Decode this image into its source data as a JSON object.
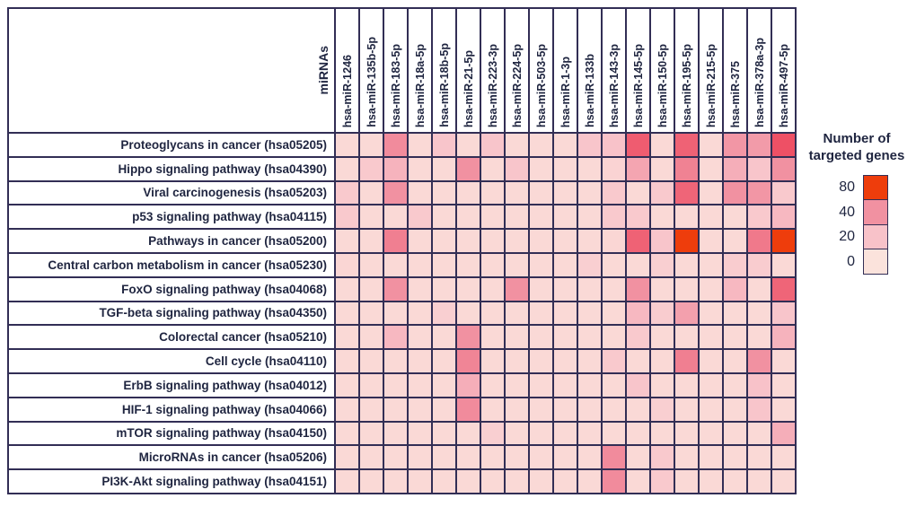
{
  "figure": {
    "corner_label": "miRNAs",
    "legend": {
      "title": "Number of targeted genes",
      "ticks": [
        "80",
        "40",
        "20",
        "0"
      ],
      "tick_colors": [
        "#EE3D0C",
        "#F191A1",
        "#F8C2C9",
        "#FBE3DC"
      ]
    },
    "colors": {
      "grid_border": "#322E55",
      "text": "#1F2540",
      "background": "#FFFFFF",
      "scale_stops": [
        [
          0,
          "#FBE3DC"
        ],
        [
          20,
          "#F8C2C9"
        ],
        [
          40,
          "#F191A1"
        ],
        [
          62,
          "#EE5065"
        ],
        [
          82,
          "#EE3D0C"
        ]
      ]
    }
  },
  "chart_data": {
    "type": "heatmap",
    "x_axis_label": "miRNAs",
    "legend_title": "Number of targeted genes",
    "legend_ticks": [
      80,
      40,
      20,
      0
    ],
    "x_categories": [
      "hsa-miR-1246",
      "hsa-miR-135b-5p",
      "hsa-miR-183-5p",
      "hsa-miR-18a-5p",
      "hsa-miR-18b-5p",
      "hsa-miR-21-5p",
      "hsa-miR-223-3p",
      "hsa-miR-224-5p",
      "hsa-miR-503-5p",
      "hsa-miR-1-3p",
      "hsa-miR-133b",
      "hsa-miR-143-3p",
      "hsa-miR-145-5p",
      "hsa-miR-150-5p",
      "hsa-miR-195-5p",
      "hsa-miR-215-5p",
      "hsa-miR-375",
      "hsa-miR-378a-3p",
      "hsa-miR-497-5p"
    ],
    "y_categories": [
      "Proteoglycans in cancer (hsa05205)",
      "Hippo signaling pathway (hsa04390)",
      "Viral carcinogenesis (hsa05203)",
      "p53 signaling pathway (hsa04115)",
      "Pathways in cancer (hsa05200)",
      "Central carbon metabolism in cancer (hsa05230)",
      "FoxO signaling pathway (hsa04068)",
      "TGF-beta signaling pathway (hsa04350)",
      "Colorectal cancer (hsa05210)",
      "Cell cycle (hsa04110)",
      "ErbB signaling pathway (hsa04012)",
      "HIF-1 signaling pathway (hsa04066)",
      "mTOR signaling pathway (hsa04150)",
      "MicroRNAs in cancer (hsa05206)",
      "PI3K-Akt signaling pathway (hsa04151)"
    ],
    "values": [
      [
        6,
        6,
        42,
        6,
        18,
        6,
        18,
        6,
        6,
        6,
        18,
        20,
        58,
        6,
        56,
        6,
        38,
        36,
        62
      ],
      [
        6,
        16,
        26,
        6,
        6,
        40,
        6,
        18,
        6,
        6,
        6,
        10,
        32,
        6,
        45,
        6,
        28,
        18,
        40
      ],
      [
        16,
        6,
        40,
        6,
        6,
        6,
        6,
        6,
        6,
        6,
        6,
        16,
        6,
        16,
        55,
        6,
        40,
        38,
        16
      ],
      [
        16,
        6,
        6,
        16,
        6,
        6,
        6,
        6,
        6,
        6,
        6,
        16,
        16,
        6,
        6,
        6,
        6,
        16,
        24
      ],
      [
        6,
        6,
        46,
        6,
        6,
        6,
        6,
        6,
        6,
        6,
        6,
        8,
        56,
        18,
        85,
        6,
        6,
        48,
        86
      ],
      [
        8,
        6,
        6,
        6,
        6,
        6,
        6,
        6,
        6,
        6,
        12,
        6,
        6,
        12,
        6,
        6,
        14,
        14,
        6
      ],
      [
        6,
        6,
        40,
        6,
        6,
        6,
        6,
        40,
        6,
        6,
        6,
        6,
        40,
        6,
        6,
        6,
        24,
        6,
        55
      ],
      [
        6,
        6,
        6,
        6,
        12,
        6,
        6,
        6,
        6,
        6,
        6,
        6,
        24,
        14,
        34,
        6,
        6,
        6,
        18
      ],
      [
        6,
        6,
        24,
        6,
        6,
        40,
        6,
        6,
        6,
        6,
        6,
        6,
        16,
        6,
        6,
        6,
        6,
        6,
        26
      ],
      [
        6,
        6,
        6,
        6,
        6,
        44,
        6,
        6,
        6,
        6,
        6,
        16,
        6,
        6,
        46,
        6,
        6,
        40,
        6
      ],
      [
        6,
        6,
        6,
        6,
        6,
        28,
        6,
        6,
        6,
        6,
        6,
        6,
        18,
        6,
        6,
        6,
        6,
        20,
        6
      ],
      [
        6,
        6,
        6,
        6,
        6,
        42,
        6,
        6,
        6,
        6,
        6,
        6,
        6,
        12,
        6,
        6,
        6,
        18,
        6
      ],
      [
        6,
        6,
        6,
        6,
        6,
        6,
        12,
        6,
        6,
        6,
        6,
        6,
        6,
        6,
        6,
        6,
        6,
        6,
        28
      ],
      [
        6,
        6,
        6,
        6,
        6,
        6,
        6,
        6,
        6,
        6,
        6,
        42,
        6,
        16,
        6,
        6,
        6,
        6,
        6
      ],
      [
        6,
        6,
        6,
        6,
        6,
        6,
        6,
        6,
        6,
        6,
        6,
        42,
        6,
        16,
        6,
        6,
        6,
        6,
        6
      ]
    ]
  }
}
